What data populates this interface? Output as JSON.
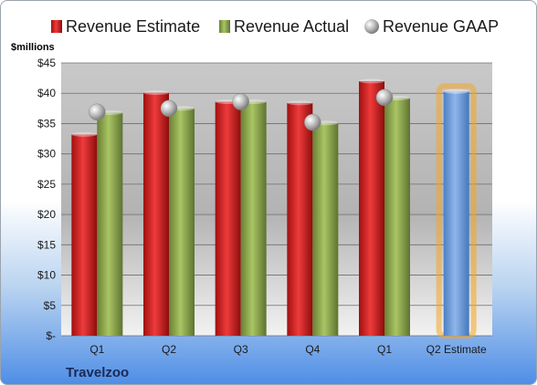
{
  "chart_data": {
    "type": "bar",
    "ylabel": "$millions",
    "company": "Travelzoo",
    "categories": [
      "Q1",
      "Q2",
      "Q3",
      "Q4",
      "Q1",
      "Q2 Estimate"
    ],
    "ylim": [
      0,
      45
    ],
    "yticks": [
      0,
      5,
      10,
      15,
      20,
      25,
      30,
      35,
      40,
      45
    ],
    "ytick_labels": [
      "$-",
      "$5",
      "$10",
      "$15",
      "$20",
      "$25",
      "$30",
      "$35",
      "$40",
      "$45"
    ],
    "grid": true,
    "legend_position": "top",
    "series": [
      {
        "name": "Revenue Estimate",
        "kind": "bar",
        "color": "#d42a2a",
        "values": [
          33.2,
          40.1,
          38.6,
          38.4,
          42.0,
          null
        ]
      },
      {
        "name": "Revenue Actual",
        "kind": "bar",
        "color": "#8ea94d",
        "values": [
          36.8,
          37.5,
          38.6,
          35.1,
          39.2,
          null
        ]
      },
      {
        "name": "Revenue GAAP",
        "kind": "marker",
        "color": "#b8b8b8",
        "values": [
          36.9,
          37.5,
          38.6,
          35.2,
          39.3,
          null
        ]
      }
    ],
    "estimate": {
      "category_index": 5,
      "value": 40.3,
      "color": "#6f9fdb",
      "highlight": "#f5a623"
    }
  }
}
